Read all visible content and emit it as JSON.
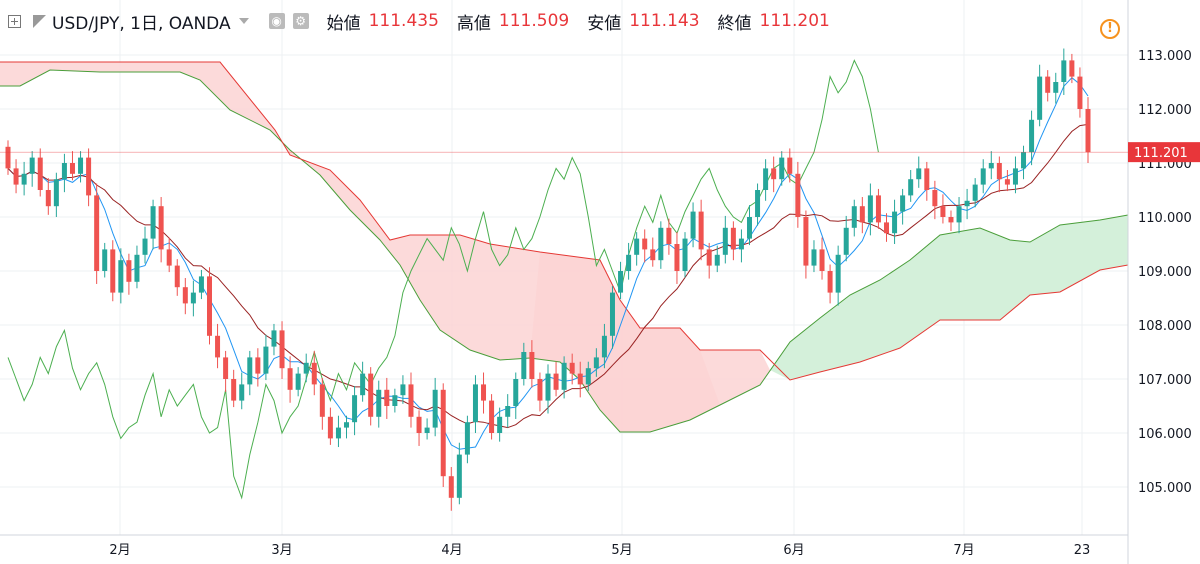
{
  "header": {
    "symbol": "USD/JPY, 1日, OANDA",
    "open_label": "始値",
    "open": "111.435",
    "high_label": "高値",
    "high": "111.509",
    "low_label": "安値",
    "low": "111.143",
    "close_label": "終値",
    "close": "111.201"
  },
  "colors": {
    "up": "#26a69a",
    "down": "#ef5350",
    "conversion": "#2196f3",
    "base": "#992222",
    "lagging": "#4caf50",
    "span_a": "#4a9e3a",
    "span_b": "#e53935",
    "cloud_bull": "#cfeed6",
    "cloud_bear": "#fbd3d3",
    "grid": "#eef0f3",
    "last_price": "#e8363a"
  },
  "chart_data": {
    "type": "candlestick",
    "indicator": "Ichimoku Kinko Hyo",
    "x_tick_labels": [
      "2月",
      "3月",
      "4月",
      "5月",
      "6月",
      "7月",
      "23"
    ],
    "y_ticks": [
      "105.000",
      "106.000",
      "107.000",
      "108.000",
      "109.000",
      "110.000",
      "111.000",
      "112.000",
      "113.000"
    ],
    "y_range": [
      104.2,
      113.45
    ],
    "last_price": "111.201",
    "ohlc_close": [
      110.9,
      110.6,
      110.8,
      111.1,
      110.5,
      110.2,
      110.7,
      111.0,
      110.8,
      111.1,
      110.4,
      109.0,
      109.4,
      108.6,
      109.2,
      108.8,
      109.3,
      109.6,
      110.2,
      109.4,
      109.1,
      108.7,
      108.4,
      108.6,
      108.9,
      107.8,
      107.4,
      107.0,
      106.6,
      106.9,
      107.4,
      107.1,
      107.6,
      107.9,
      107.2,
      106.8,
      107.1,
      107.3,
      106.9,
      106.3,
      105.9,
      106.1,
      106.2,
      106.7,
      107.1,
      106.3,
      106.8,
      106.5,
      106.7,
      106.9,
      106.3,
      106.0,
      106.1,
      106.8,
      105.2,
      104.8,
      105.6,
      106.2,
      106.9,
      106.6,
      106.0,
      106.3,
      106.5,
      107.0,
      107.5,
      107.0,
      106.6,
      107.1,
      106.8,
      107.3,
      107.1,
      106.9,
      107.2,
      107.4,
      107.8,
      108.6,
      109.0,
      109.3,
      109.6,
      109.4,
      109.2,
      109.8,
      109.5,
      109.0,
      109.6,
      110.1,
      109.4,
      109.1,
      109.3,
      109.8,
      109.4,
      109.6,
      110.0,
      110.5,
      110.9,
      110.7,
      111.1,
      110.8,
      110.0,
      109.1,
      109.4,
      109.0,
      108.6,
      109.3,
      109.8,
      110.2,
      109.9,
      110.4,
      109.9,
      109.7,
      110.1,
      110.4,
      110.7,
      110.9,
      110.5,
      110.2,
      110.0,
      109.9,
      110.2,
      110.3,
      110.6,
      110.9,
      111.0,
      110.7,
      110.6,
      110.9,
      111.2,
      111.8,
      112.6,
      112.3,
      112.5,
      112.9,
      112.6,
      112.0,
      111.2
    ]
  }
}
